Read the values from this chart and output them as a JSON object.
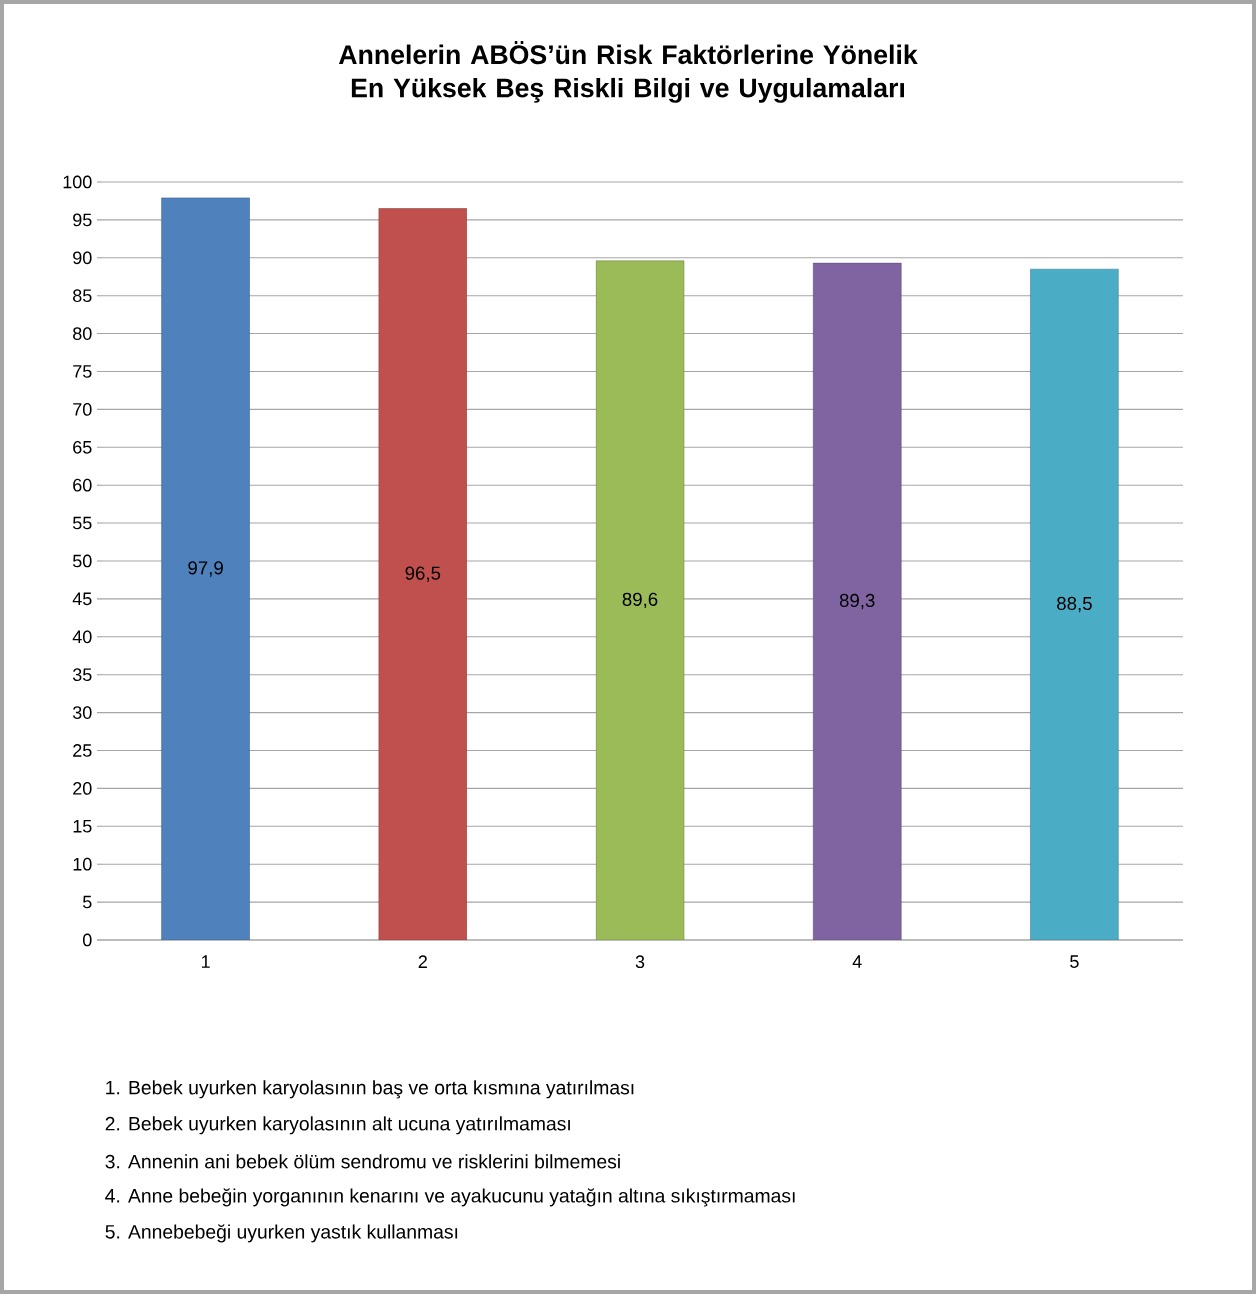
{
  "chart_data": {
    "type": "bar",
    "title": "Annelerin ABÖS’ün Risk Faktörlerine Yönelik En Yüksek Beş Riskli Bilgi ve Uygulamaları",
    "categories": [
      "1",
      "2",
      "3",
      "4",
      "5"
    ],
    "values": [
      97.9,
      96.5,
      89.6,
      89.3,
      88.5
    ],
    "value_labels": [
      "97,9",
      "96,5",
      "89,6",
      "89,3",
      "88,5"
    ],
    "colors": [
      "#4f81bd",
      "#c0504d",
      "#9bbb59",
      "#8064a2",
      "#4bacc6"
    ],
    "ylim": [
      0,
      100
    ],
    "yticks": [
      0,
      5,
      10,
      15,
      20,
      25,
      30,
      35,
      40,
      45,
      50,
      55,
      60,
      65,
      70,
      75,
      80,
      85,
      90,
      95,
      100
    ],
    "grid": "y",
    "annotations": [
      "1. Bebek uyurken karyolasının baş ve orta kısmına yatırılması",
      "2. Bebek uyurken karyolasının alt ucuna yatırılmaması",
      "3. Annenin ani bebek ölüm sendromu ve risklerini bilmemesi",
      "4. Anne bebeğin yorganının kenarını ve ayakucunu yatağın altına sıkıştırmaması",
      "5. Annebebeği uyurken yastık kullanması"
    ]
  }
}
